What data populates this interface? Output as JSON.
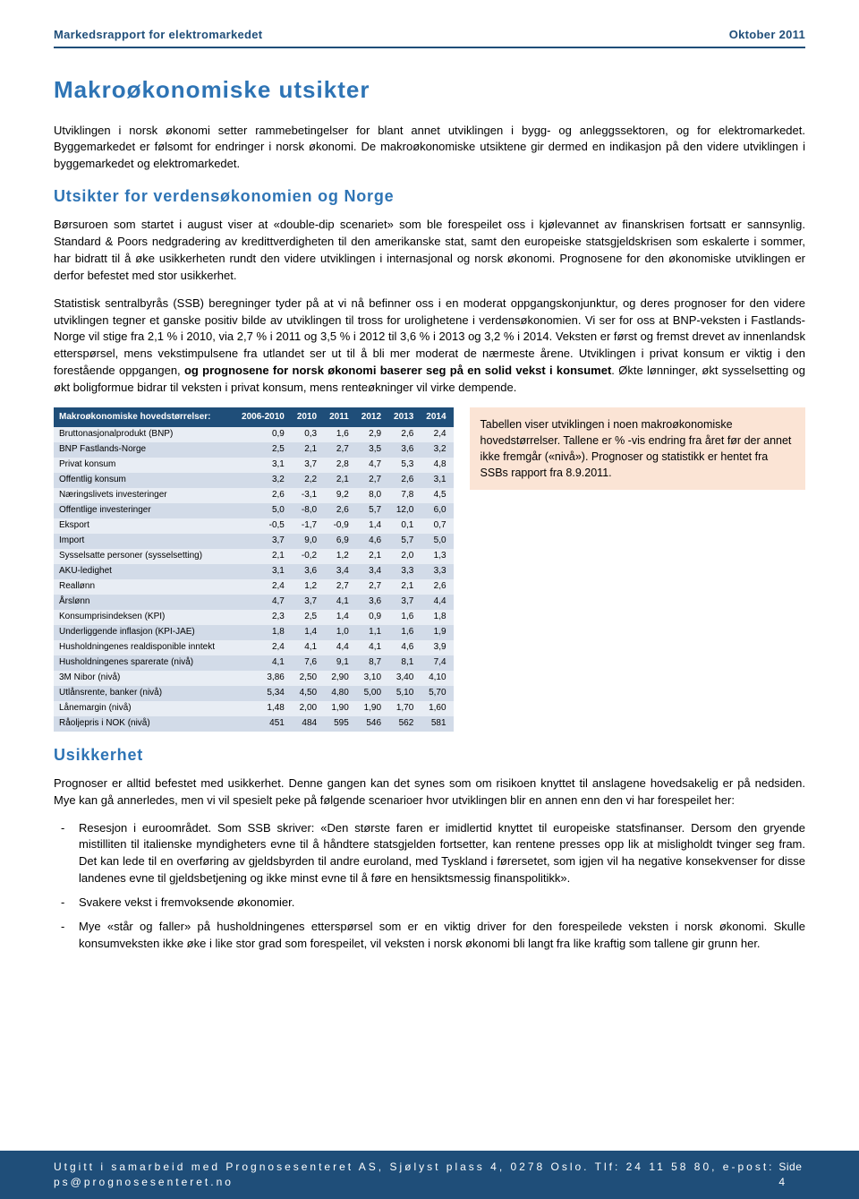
{
  "header": {
    "title_left": "Markedsrapport for elektromarkedet",
    "title_right": "Oktober 2011",
    "border_color": "#1f4e79",
    "text_color": "#1f4e79"
  },
  "main_title": "Makroøkonomiske utsikter",
  "title_color": "#2e74b5",
  "intro_para": "Utviklingen i norsk økonomi setter rammebetingelser for blant annet utviklingen i bygg- og anleggssektoren, og for elektromarkedet. Byggemarkedet er følsomt for endringer i norsk økonomi. De makroøkonomiske utsiktene gir dermed en indikasjon på den videre utviklingen i byggemarkedet og elektromarkedet.",
  "section1_title": "Utsikter for verdensøkonomien og Norge",
  "section1_p1": "Børsuroen som startet i august viser at «double-dip scenariet» som ble forespeilet oss i kjølevannet av finanskrisen fortsatt er sannsynlig. Standard & Poors nedgradering av kredittverdigheten til den amerikanske stat, samt den europeiske statsgjeldskrisen som eskalerte i sommer, har bidratt til å øke usikkerheten rundt den videre utviklingen i internasjonal og norsk økonomi. Prognosene for den økonomiske utviklingen er derfor befestet med stor usikkerhet.",
  "section1_p2_a": "Statistisk sentralbyrås (SSB) beregninger tyder på at vi nå befinner oss i en moderat oppgangskonjunktur, og deres prognoser for den videre utviklingen tegner et ganske positiv bilde av utviklingen til tross for urolighetene i verdensøkonomien. Vi ser for oss at BNP-veksten i Fastlands-Norge vil stige fra 2,1 % i 2010, via 2,7 % i 2011 og 3,5 % i 2012 til 3,6 % i 2013 og 3,2 % i 2014. Veksten er først og fremst drevet av innenlandsk etterspørsel, mens vekstimpulsene fra utlandet ser ut til å bli mer moderat de nærmeste årene. Utviklingen i privat konsum er viktig i den forestående oppgangen, ",
  "section1_p2_bold": "og prognosene for norsk økonomi baserer seg på en solid vekst i konsumet",
  "section1_p2_b": ". Økte lønninger, økt sysselsetting og økt boligformue bidrar til veksten i privat konsum, mens renteøkninger vil virke dempende.",
  "table": {
    "header_bg": "#1f4e79",
    "header_text_color": "#ffffff",
    "row_odd_bg": "#e8edf4",
    "row_even_bg": "#d2dbe8",
    "fontsize": 10,
    "columns": [
      "Makroøkonomiske hovedstørrelser:",
      "2006-2010",
      "2010",
      "2011",
      "2012",
      "2013",
      "2014"
    ],
    "rows": [
      [
        "Bruttonasjonalprodukt (BNP)",
        "0,9",
        "0,3",
        "1,6",
        "2,9",
        "2,6",
        "2,4"
      ],
      [
        "BNP Fastlands-Norge",
        "2,5",
        "2,1",
        "2,7",
        "3,5",
        "3,6",
        "3,2"
      ],
      [
        "Privat konsum",
        "3,1",
        "3,7",
        "2,8",
        "4,7",
        "5,3",
        "4,8"
      ],
      [
        "Offentlig konsum",
        "3,2",
        "2,2",
        "2,1",
        "2,7",
        "2,6",
        "3,1"
      ],
      [
        "Næringslivets investeringer",
        "2,6",
        "-3,1",
        "9,2",
        "8,0",
        "7,8",
        "4,5"
      ],
      [
        "Offentlige investeringer",
        "5,0",
        "-8,0",
        "2,6",
        "5,7",
        "12,0",
        "6,0"
      ],
      [
        "Eksport",
        "-0,5",
        "-1,7",
        "-0,9",
        "1,4",
        "0,1",
        "0,7"
      ],
      [
        "Import",
        "3,7",
        "9,0",
        "6,9",
        "4,6",
        "5,7",
        "5,0"
      ],
      [
        "Sysselsatte personer (sysselsetting)",
        "2,1",
        "-0,2",
        "1,2",
        "2,1",
        "2,0",
        "1,3"
      ],
      [
        "AKU-ledighet",
        "3,1",
        "3,6",
        "3,4",
        "3,4",
        "3,3",
        "3,3"
      ],
      [
        "Reallønn",
        "2,4",
        "1,2",
        "2,7",
        "2,7",
        "2,1",
        "2,6"
      ],
      [
        "Årslønn",
        "4,7",
        "3,7",
        "4,1",
        "3,6",
        "3,7",
        "4,4"
      ],
      [
        "Konsumprisindeksen (KPI)",
        "2,3",
        "2,5",
        "1,4",
        "0,9",
        "1,6",
        "1,8"
      ],
      [
        "Underliggende inflasjon (KPI-JAE)",
        "1,8",
        "1,4",
        "1,0",
        "1,1",
        "1,6",
        "1,9"
      ],
      [
        "Husholdningenes realdisponible inntekt",
        "2,4",
        "4,1",
        "4,4",
        "4,1",
        "4,6",
        "3,9"
      ],
      [
        "Husholdningenes sparerate (nivå)",
        "4,1",
        "7,6",
        "9,1",
        "8,7",
        "8,1",
        "7,4"
      ],
      [
        "3M Nibor (nivå)",
        "3,86",
        "2,50",
        "2,90",
        "3,10",
        "3,40",
        "4,10"
      ],
      [
        "Utlånsrente, banker (nivå)",
        "5,34",
        "4,50",
        "4,80",
        "5,00",
        "5,10",
        "5,70"
      ],
      [
        "Lånemargin (nivå)",
        "1,48",
        "2,00",
        "1,90",
        "1,90",
        "1,70",
        "1,60"
      ],
      [
        "Råoljepris i NOK (nivå)",
        "451",
        "484",
        "595",
        "546",
        "562",
        "581"
      ]
    ]
  },
  "aside": {
    "bg": "#fbe4d5",
    "text": "Tabellen viser utviklingen i noen makroøkonomiske hovedstørrelser. Tallene er % -vis endring fra året før der annet ikke fremgår («nivå»). Prognoser og statistikk er hentet fra SSBs rapport fra 8.9.2011."
  },
  "section2_title": "Usikkerhet",
  "section2_p1": "Prognoser er alltid befestet med usikkerhet. Denne gangen kan det synes som om risikoen knyttet til anslagene hovedsakelig er på nedsiden. Mye kan gå annerledes, men vi vil spesielt peke på følgende scenarioer hvor utviklingen blir en annen enn den vi har forespeilet her:",
  "bullets": [
    "Resesjon i euroområdet. Som SSB skriver: «Den største faren er imidlertid knyttet til europeiske statsfinanser. Dersom den gryende mistilliten til italienske myndigheters evne til å håndtere statsgjelden fortsetter, kan rentene presses opp lik at misligholdt tvinger seg fram. Det kan lede til en overføring av gjeldsbyrden til andre euroland, med Tyskland i førersetet, som igjen vil ha negative konsekvenser for disse landenes evne til gjeldsbetjening og ikke minst evne til å føre en hensiktsmessig finanspolitikk».",
    "Svakere vekst i fremvoksende økonomier.",
    "Mye «står og faller» på husholdningenes etterspørsel som er en viktig driver for den forespeilede veksten i norsk økonomi. Skulle konsumveksten ikke øke i like stor grad som forespeilet, vil veksten i norsk økonomi bli langt fra like kraftig som tallene gir grunn her."
  ],
  "footer": {
    "bg": "#1f4e79",
    "text_color": "#ffffff",
    "left": "Utgitt i samarbeid med Prognosesenteret AS, Sjølyst plass 4, 0278 Oslo. Tlf: 24 11 58 80, e-post: ps@prognosesenteret.no",
    "right": "Side 4"
  }
}
